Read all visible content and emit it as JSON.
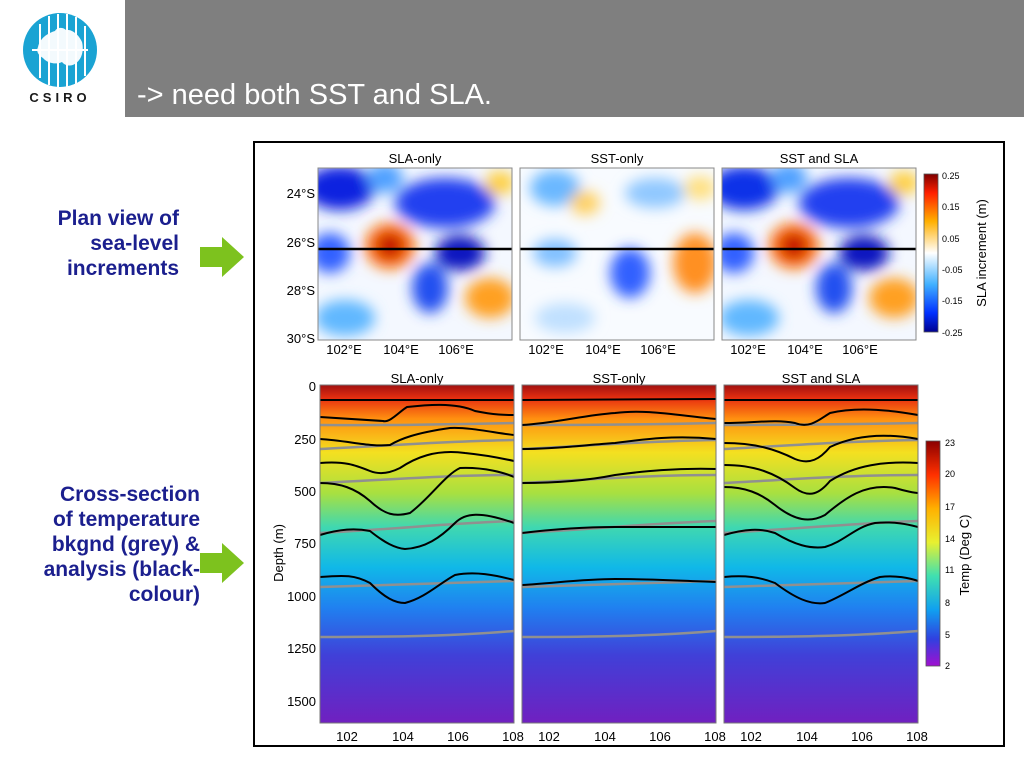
{
  "slide": {
    "title": "-> need both SST and SLA.",
    "logo_text": "CSIRO"
  },
  "captions": {
    "plan_view": "Plan view of\nsea-level\nincrements",
    "cross_section": "Cross-section\nof temperature\nbkgnd (grey) &\nanalysis (black-\ncolour)"
  },
  "figure": {
    "panel_titles": [
      "SLA-only",
      "SST-only",
      "SST and SLA"
    ],
    "map": {
      "lat_ticks": [
        "24°S",
        "26°S",
        "28°S",
        "30°S"
      ],
      "lon_ticks": [
        "102°E",
        "104°E",
        "106°E"
      ],
      "colorbar_label": "SLA increment (m)",
      "colorbar_ticks": [
        "0.25",
        "0.15",
        "0.05",
        "-0.05",
        "-0.15",
        "-0.25"
      ]
    },
    "section": {
      "depth_label": "Depth (m)",
      "depth_ticks": [
        "0",
        "250",
        "500",
        "750",
        "1000",
        "1250",
        "1500"
      ],
      "lon_ticks": [
        "102",
        "104",
        "106",
        "108"
      ],
      "colorbar_label": "Temp (Deg C)",
      "colorbar_ticks": [
        "23",
        "20",
        "17",
        "14",
        "11",
        "8",
        "5",
        "2"
      ]
    }
  },
  "colors": {
    "header": "#7f7f7f",
    "caption": "#1b1f8e",
    "arrow": "#7dc21e",
    "logo": "#1aa3d3"
  }
}
